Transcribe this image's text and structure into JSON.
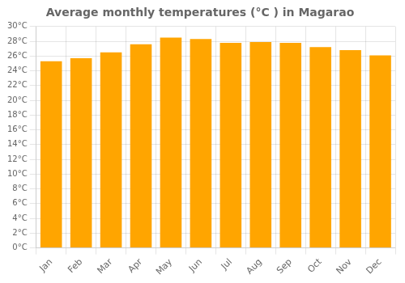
{
  "chart_data": {
    "type": "bar",
    "title": "Average monthly temperatures (°C ) in Magarao",
    "categories": [
      "Jan",
      "Feb",
      "Mar",
      "Apr",
      "May",
      "Jun",
      "Jul",
      "Aug",
      "Sep",
      "Oct",
      "Nov",
      "Dec"
    ],
    "values": [
      25.3,
      25.7,
      26.5,
      27.6,
      28.5,
      28.3,
      27.8,
      27.9,
      27.8,
      27.2,
      26.8,
      26.1
    ],
    "color": "#FFA500",
    "ylim": [
      0,
      30
    ],
    "yticks": [
      {
        "value": 0,
        "label": "0°C"
      },
      {
        "value": 2,
        "label": "2°C"
      },
      {
        "value": 4,
        "label": "4°C"
      },
      {
        "value": 6,
        "label": "6°C"
      },
      {
        "value": 8,
        "label": "8°C"
      },
      {
        "value": 10,
        "label": "10°C"
      },
      {
        "value": 12,
        "label": "12°C"
      },
      {
        "value": 14,
        "label": "14°C"
      },
      {
        "value": 16,
        "label": "16°C"
      },
      {
        "value": 18,
        "label": "18°C"
      },
      {
        "value": 20,
        "label": "20°C"
      },
      {
        "value": 22,
        "label": "22°C"
      },
      {
        "value": 24,
        "label": "24°C"
      },
      {
        "value": 26,
        "label": "26°C"
      },
      {
        "value": 28,
        "label": "28°C"
      },
      {
        "value": 30,
        "label": "30°C"
      }
    ],
    "grid": true
  }
}
